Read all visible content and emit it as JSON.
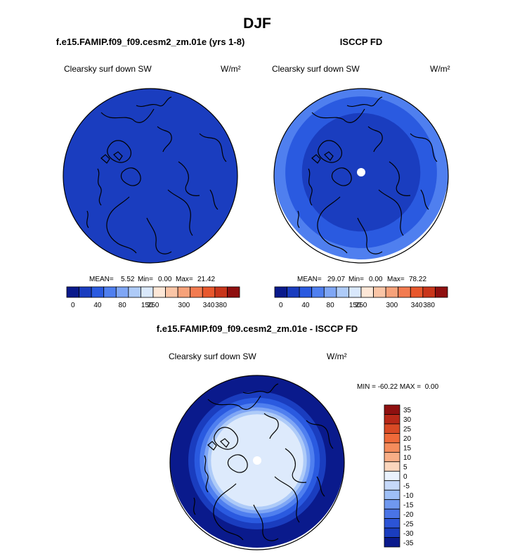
{
  "figure": {
    "title": "DJF"
  },
  "colors": {
    "map_boundary": "#000000",
    "coastline": "#000000",
    "pole_hole": "#ffffff",
    "background": "#ffffff"
  },
  "chart_data": [
    {
      "type": "heatmap",
      "projection": "north-polar-stereographic",
      "title": "f.e15.FAMIP.f09_f09.cesm2_zm.01e (yrs 1-8)",
      "variable_label": "Clearsky surf down SW",
      "units": "W/m²",
      "stats": {
        "mean_label": "MEAN=",
        "mean": "5.52",
        "min_label": "Min=",
        "min": "0.00",
        "max_label": "Max=",
        "max": "21.42"
      },
      "rings": [
        {
          "outer_colat_frac": 1.0,
          "color": "#1a3dbf"
        }
      ],
      "pole_hole": false,
      "colorbar": {
        "orientation": "horizontal",
        "colors": [
          "#0a1a8c",
          "#1a3dbf",
          "#2a5ae0",
          "#4f7fef",
          "#7fa6f5",
          "#aecbf8",
          "#d9e8fc",
          "#fde7d7",
          "#fac5a6",
          "#f7a27a",
          "#f27b50",
          "#e8582d",
          "#c9361b",
          "#8f1010"
        ],
        "tick_labels": [
          "0",
          "40",
          "80",
          "150",
          "250",
          "300",
          "340",
          "380"
        ]
      }
    },
    {
      "type": "heatmap",
      "projection": "north-polar-stereographic",
      "title": "ISCCP FD",
      "variable_label": "Clearsky surf down SW",
      "units": "W/m²",
      "stats": {
        "mean_label": "MEAN=",
        "mean": "29.07",
        "min_label": "Min=",
        "min": "0.00",
        "max_label": "Max=",
        "max": "78.22"
      },
      "rings": [
        {
          "outer_colat_frac": 1.0,
          "color": "#4f7fef"
        },
        {
          "outer_colat_frac": 0.87,
          "color": "#2a5ae0"
        },
        {
          "outer_colat_frac": 0.68,
          "color": "#1a3dbf"
        }
      ],
      "pole_hole": true,
      "colorbar": {
        "orientation": "horizontal",
        "colors": [
          "#0a1a8c",
          "#1a3dbf",
          "#2a5ae0",
          "#4f7fef",
          "#7fa6f5",
          "#aecbf8",
          "#d9e8fc",
          "#fde7d7",
          "#fac5a6",
          "#f7a27a",
          "#f27b50",
          "#e8582d",
          "#c9361b",
          "#8f1010"
        ],
        "tick_labels": [
          "0",
          "40",
          "80",
          "150",
          "250",
          "300",
          "340",
          "380"
        ]
      }
    },
    {
      "type": "heatmap",
      "projection": "north-polar-stereographic",
      "title": "f.e15.FAMIP.f09_f09.cesm2_zm.01e - ISCCP FD",
      "variable_label": "Clearsky surf down SW",
      "units": "W/m²",
      "stats": {
        "text": "MIN = -60.22 MAX =  0.00"
      },
      "rings": [
        {
          "outer_colat_frac": 1.0,
          "color": "#0a1a8c"
        },
        {
          "outer_colat_frac": 0.79,
          "color": "#1a3dbf"
        },
        {
          "outer_colat_frac": 0.72,
          "color": "#2a5ae0"
        },
        {
          "outer_colat_frac": 0.66,
          "color": "#4f7fef"
        },
        {
          "outer_colat_frac": 0.61,
          "color": "#7fa6f5"
        },
        {
          "outer_colat_frac": 0.57,
          "color": "#aecbf8"
        },
        {
          "outer_colat_frac": 0.53,
          "color": "#ddeafc"
        }
      ],
      "pole_hole": true,
      "colorbar": {
        "orientation": "vertical",
        "colors_top_to_bottom": [
          "#8f1010",
          "#b82818",
          "#d94a25",
          "#ef6a3a",
          "#f58c5c",
          "#f8ae86",
          "#fbd6bd",
          "#eaf2fd",
          "#c6d9fa",
          "#9ebff6",
          "#6f98ef",
          "#4a74e6",
          "#2c54d6",
          "#1a3dbf",
          "#0a1a8c"
        ],
        "tick_labels_top_to_bottom": [
          "35",
          "30",
          "25",
          "20",
          "15",
          "10",
          "5",
          "0",
          "-5",
          "-10",
          "-15",
          "-20",
          "-25",
          "-30",
          "-35"
        ]
      }
    }
  ]
}
